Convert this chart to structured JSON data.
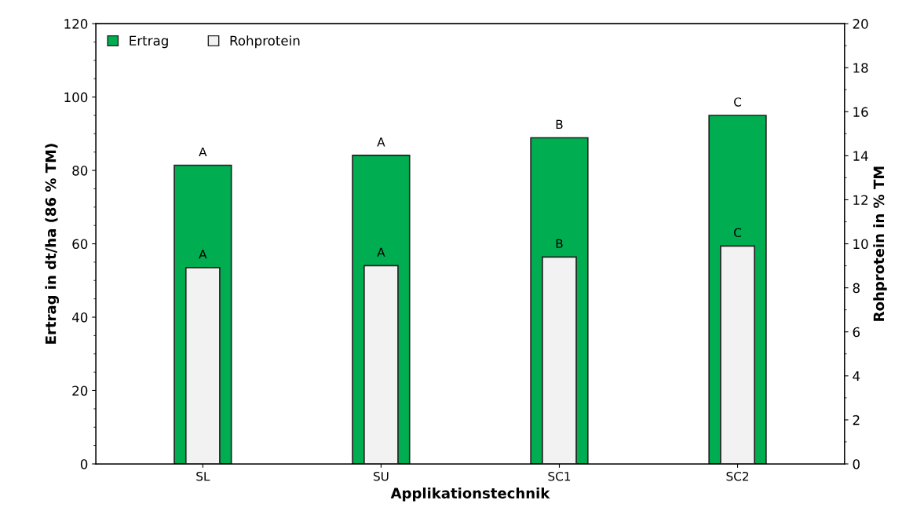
{
  "chart_data": {
    "type": "bar",
    "xlabel": "Applikationstechnik",
    "ylabel": "Ertrag in dt/ha (86 % TM)",
    "y2label": "Rohprotein in % TM",
    "categories": [
      "SL",
      "SU",
      "SC1",
      "SC2"
    ],
    "series": [
      {
        "name": "Ertrag",
        "color": "#00ad50",
        "values": [
          81.4,
          84.1,
          88.9,
          95.0
        ],
        "value_labels": [
          "A",
          "A",
          "B",
          "C"
        ]
      },
      {
        "name": "Rohprotein",
        "color": "#f2f2f2",
        "axis": "y2",
        "values": [
          8.92,
          9.01,
          9.4,
          9.9
        ],
        "value_labels": [
          "A",
          "A",
          "B",
          "C"
        ]
      }
    ],
    "ylim": [
      0,
      120
    ],
    "yticks": [
      0,
      20,
      40,
      60,
      80,
      100,
      120
    ],
    "y2lim": [
      0,
      20
    ],
    "y2ticks": [
      0,
      2,
      4,
      6,
      8,
      10,
      12,
      14,
      16,
      18,
      20
    ],
    "grid": false,
    "legend": "top left"
  }
}
